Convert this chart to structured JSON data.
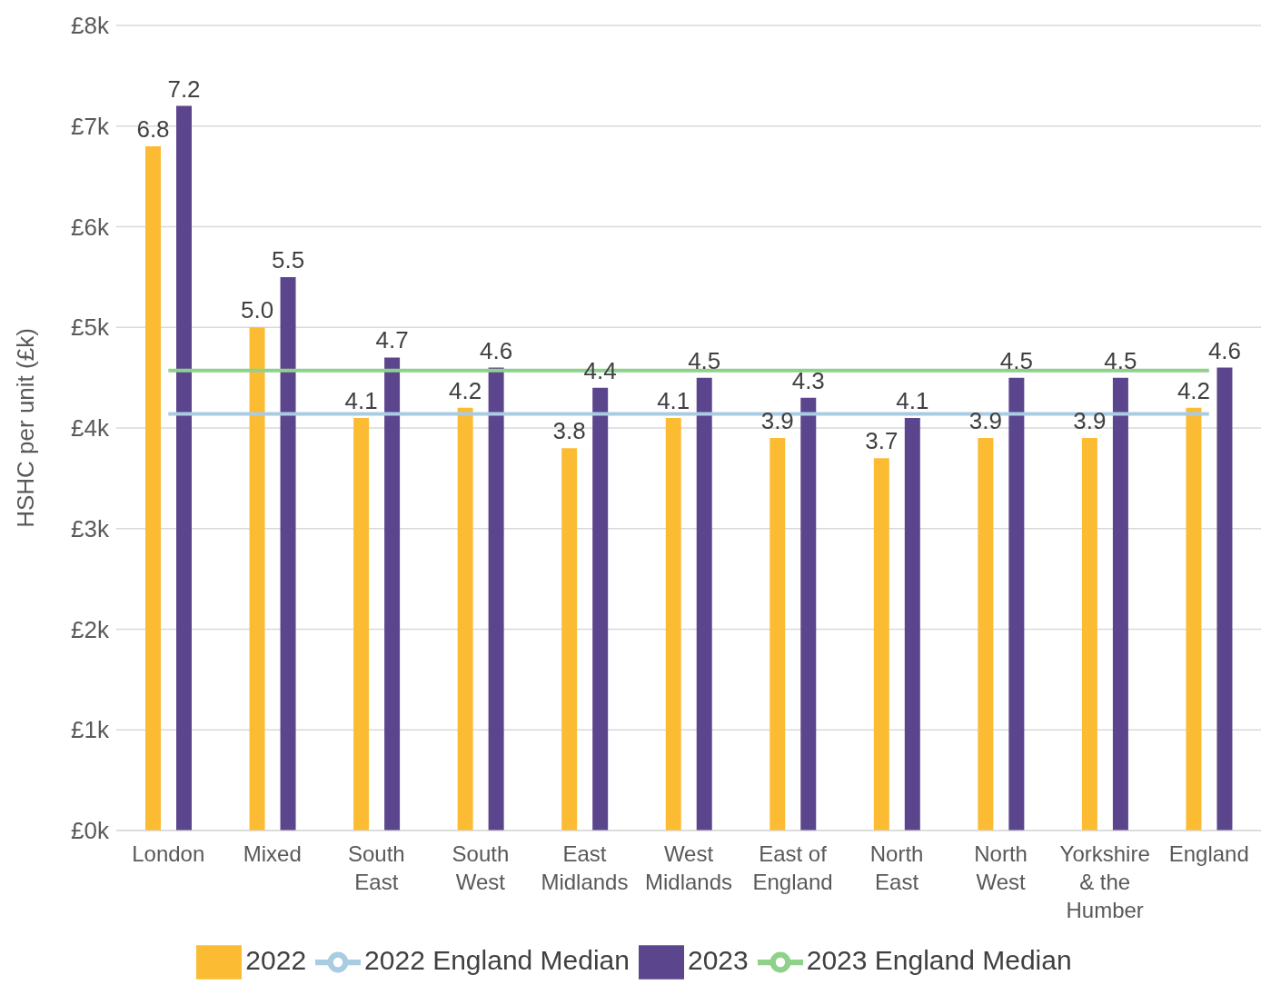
{
  "chart_data": {
    "type": "bar",
    "ylabel": "HSHC per unit (£k)",
    "categories": [
      "London",
      "Mixed",
      "South East",
      "South West",
      "East Midlands",
      "West Midlands",
      "East of England",
      "North East",
      "North West",
      "Yorkshire & the Humber",
      "England"
    ],
    "series": [
      {
        "name": "2022",
        "color": "#fbbc34",
        "values": [
          6.8,
          5.0,
          4.1,
          4.2,
          3.8,
          4.1,
          3.9,
          3.7,
          3.9,
          3.9,
          4.2
        ],
        "value_labels": [
          "6.8",
          "5.0",
          "4.1",
          "4.2",
          "3.8",
          "4.1",
          "3.9",
          "3.7",
          "3.9",
          "3.9",
          "4.2"
        ]
      },
      {
        "name": "2023",
        "color": "#5b468e",
        "values": [
          7.2,
          5.5,
          4.7,
          4.6,
          4.4,
          4.5,
          4.3,
          4.1,
          4.5,
          4.5,
          4.6
        ],
        "value_labels": [
          "7.2",
          "5.5",
          "4.7",
          "4.6",
          "4.4",
          "4.5",
          "4.3",
          "4.1",
          "4.5",
          "4.5",
          "4.6"
        ]
      },
      {
        "name": "2022 England Median",
        "type": "line",
        "color": "#a9cce3",
        "values": [
          4.14,
          4.14,
          4.14,
          4.14,
          4.14,
          4.14,
          4.14,
          4.14,
          4.14,
          4.14,
          4.14
        ]
      },
      {
        "name": "2023 England Median",
        "type": "line",
        "color": "#8fd18a",
        "values": [
          4.57,
          4.57,
          4.57,
          4.57,
          4.57,
          4.57,
          4.57,
          4.57,
          4.57,
          4.57,
          4.57
        ]
      }
    ],
    "ylim": [
      0,
      8
    ],
    "yticks": [
      {
        "value": 0,
        "label": "£0k"
      },
      {
        "value": 1,
        "label": "£1k"
      },
      {
        "value": 2,
        "label": "£2k"
      },
      {
        "value": 3,
        "label": "£3k"
      },
      {
        "value": 4,
        "label": "£4k"
      },
      {
        "value": 5,
        "label": "£5k"
      },
      {
        "value": 6,
        "label": "£6k"
      },
      {
        "value": 7,
        "label": "£7k"
      },
      {
        "value": 8,
        "label": "£8k"
      }
    ],
    "grid": "y",
    "legend": "bottom",
    "marker": "none",
    "line_style": "solid"
  }
}
